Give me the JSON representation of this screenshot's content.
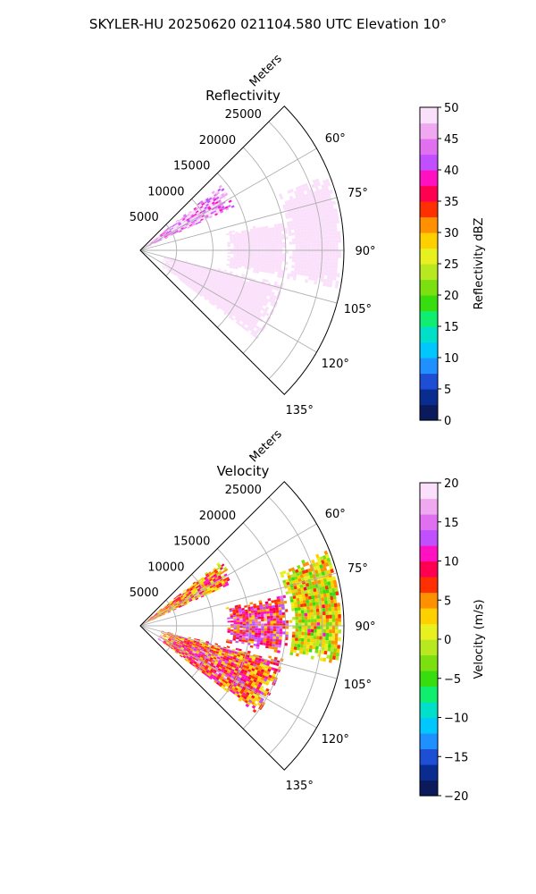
{
  "suptitle": "SKYLER-HU  20250620  021104.580 UTC Elevation 10°",
  "colors": {
    "axis": "#000000",
    "grid": "#b0b0b0",
    "background": "#ffffff"
  },
  "chart_data": [
    {
      "type": "polar-sector",
      "title": "Reflectivity",
      "range_label": "Meters",
      "range_ticks": [
        "5000",
        "10000",
        "15000",
        "20000",
        "25000"
      ],
      "range_values": [
        5000,
        10000,
        15000,
        20000,
        25000
      ],
      "range_max": 28000,
      "azimuth_ticks": [
        "60°",
        "75°",
        "90°",
        "105°",
        "120°",
        "135°"
      ],
      "azimuth_values": [
        60,
        75,
        90,
        105,
        120,
        135
      ],
      "azimuth_range": [
        45,
        135
      ],
      "grid": true,
      "colorbar": {
        "label": "Reflectivity dBZ",
        "ticks": [
          "0",
          "5",
          "10",
          "15",
          "20",
          "25",
          "30",
          "35",
          "40",
          "45",
          "50"
        ],
        "range": [
          0,
          50
        ],
        "colormap": [
          "#0b1a5a",
          "#0a2b8f",
          "#1e4dd6",
          "#1e90ff",
          "#00c8ff",
          "#00e0c8",
          "#10ee70",
          "#38dd10",
          "#7ce010",
          "#b8e820",
          "#e8f020",
          "#ffd000",
          "#ff9000",
          "#ff3000",
          "#ff0050",
          "#ff10c0",
          "#c050ff",
          "#e070f0",
          "#f0a8f0",
          "#fbe0fb"
        ]
      },
      "echo_regions": [
        {
          "desc": "northern band",
          "az": [
            51,
            65
          ],
          "r": [
            0,
            14000
          ],
          "level": 18
        },
        {
          "desc": "southern broad area",
          "az": [
            103,
            127
          ],
          "r": [
            3000,
            20000
          ],
          "level": 22
        },
        {
          "desc": "central cells",
          "az": [
            78,
            100
          ],
          "r": [
            12000,
            20000
          ],
          "level": 22
        },
        {
          "desc": "eastern intense core",
          "az": [
            68,
            100
          ],
          "r": [
            20500,
            27500
          ],
          "level": 32
        }
      ]
    },
    {
      "type": "polar-sector",
      "title": "Velocity",
      "range_label": "Meters",
      "range_ticks": [
        "5000",
        "10000",
        "15000",
        "20000",
        "25000"
      ],
      "range_values": [
        5000,
        10000,
        15000,
        20000,
        25000
      ],
      "range_max": 28000,
      "azimuth_ticks": [
        "60°",
        "75°",
        "90°",
        "105°",
        "120°",
        "135°"
      ],
      "azimuth_values": [
        60,
        75,
        90,
        105,
        120,
        135
      ],
      "azimuth_range": [
        45,
        135
      ],
      "grid": true,
      "colorbar": {
        "label": "Velocity (m/s)",
        "ticks": [
          "−20",
          "−15",
          "−10",
          "−5",
          "0",
          "5",
          "10",
          "15",
          "20"
        ],
        "range": [
          -20,
          20
        ],
        "colormap": [
          "#0b1a5a",
          "#0a2b8f",
          "#1e4dd6",
          "#1e90ff",
          "#00c8ff",
          "#00e0c8",
          "#10ee70",
          "#38dd10",
          "#7ce010",
          "#b8e820",
          "#e8f020",
          "#ffd000",
          "#ff9000",
          "#ff3000",
          "#ff0050",
          "#ff10c0",
          "#c050ff",
          "#e070f0",
          "#f0a8f0",
          "#fbe0fb"
        ]
      },
      "echo_regions": [
        {
          "desc": "northern band",
          "az": [
            51,
            65
          ],
          "r": [
            0,
            14000
          ],
          "level": 12
        },
        {
          "desc": "southern broad area",
          "az": [
            103,
            127
          ],
          "r": [
            3000,
            20000
          ],
          "level": 13
        },
        {
          "desc": "central cells",
          "az": [
            78,
            100
          ],
          "r": [
            12000,
            20000
          ],
          "level": 14
        },
        {
          "desc": "eastern region",
          "az": [
            68,
            100
          ],
          "r": [
            20500,
            27500
          ],
          "level": 10
        }
      ]
    }
  ]
}
